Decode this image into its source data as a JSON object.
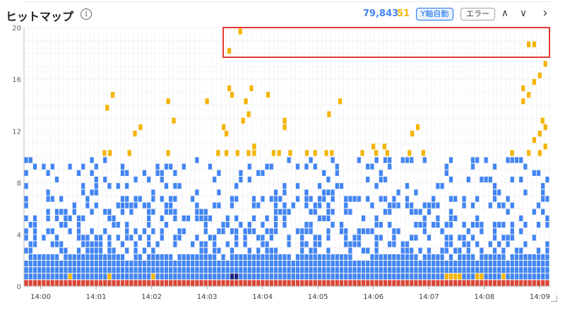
{
  "header": {
    "title": "ヒットマップ",
    "info_icon": "info-icon",
    "count_main": "79,843",
    "count_error": "51",
    "y_auto_label": "Y軸自動",
    "error_label": "エラー",
    "nav_up": "∧",
    "nav_down": "∨",
    "nav_next": "›"
  },
  "colors": {
    "normal": "#4285f4",
    "slow": "#f4b400",
    "error": "#db4437",
    "deep": "#1a237e",
    "grid": "#eeeeee",
    "highlight": "#e53935"
  },
  "chart_data": {
    "type": "heatmap",
    "y_ticks": [
      "0",
      "4",
      "8",
      "12",
      "16",
      "20"
    ],
    "ylim": [
      0,
      20
    ],
    "x_ticks": [
      "14:00",
      "14:01",
      "14:02",
      "14:03",
      "14:04",
      "14:05",
      "14:06",
      "14:07",
      "14:08",
      "14:09"
    ],
    "xlim_minutes": [
      0,
      9.5
    ],
    "series": [
      {
        "name": "",
        "color": "#f4b400",
        "points": [
          [
            3.9,
            19.7
          ],
          [
            3.7,
            18.2
          ],
          [
            9.1,
            18.7
          ],
          [
            9.2,
            18.7
          ],
          [
            9.4,
            17.2
          ],
          [
            9.3,
            16.3
          ],
          [
            9.2,
            15.8
          ],
          [
            9.0,
            15.3
          ],
          [
            1.6,
            14.8
          ],
          [
            1.5,
            13.8
          ],
          [
            3.7,
            15.3
          ],
          [
            3.75,
            14.8
          ],
          [
            4.1,
            15.3
          ],
          [
            4.0,
            14.3
          ],
          [
            4.05,
            13.3
          ],
          [
            3.95,
            12.8
          ],
          [
            4.4,
            14.8
          ],
          [
            5.5,
            13.3
          ],
          [
            5.7,
            14.3
          ],
          [
            2.1,
            12.3
          ],
          [
            2.0,
            11.8
          ],
          [
            2.6,
            14.3
          ],
          [
            2.7,
            12.8
          ],
          [
            3.3,
            14.3
          ],
          [
            3.6,
            12.3
          ],
          [
            3.65,
            11.8
          ],
          [
            4.7,
            12.8
          ],
          [
            4.7,
            12.3
          ],
          [
            7.1,
            12.3
          ],
          [
            7.0,
            11.8
          ],
          [
            9.0,
            14.3
          ],
          [
            9.1,
            14.8
          ],
          [
            9.35,
            12.8
          ],
          [
            9.4,
            12.3
          ],
          [
            9.3,
            11.8
          ],
          [
            9.2,
            11.3
          ],
          [
            1.45,
            10.3
          ],
          [
            1.55,
            10.3
          ],
          [
            1.9,
            10.3
          ],
          [
            2.6,
            10.3
          ],
          [
            3.5,
            10.3
          ],
          [
            3.65,
            10.3
          ],
          [
            3.85,
            10.3
          ],
          [
            4.05,
            10.3
          ],
          [
            4.15,
            10.3
          ],
          [
            4.5,
            10.3
          ],
          [
            4.6,
            10.3
          ],
          [
            4.8,
            10.3
          ],
          [
            5.1,
            10.3
          ],
          [
            5.25,
            10.3
          ],
          [
            5.45,
            10.3
          ],
          [
            5.55,
            10.3
          ],
          [
            6.1,
            10.3
          ],
          [
            6.35,
            10.3
          ],
          [
            6.55,
            10.3
          ],
          [
            6.95,
            10.3
          ],
          [
            7.2,
            10.3
          ],
          [
            8.8,
            10.3
          ],
          [
            9.1,
            10.3
          ],
          [
            9.3,
            10.3
          ],
          [
            9.4,
            10.8
          ],
          [
            4.15,
            10.8
          ],
          [
            6.3,
            10.8
          ],
          [
            6.5,
            10.8
          ]
        ]
      }
    ]
  }
}
